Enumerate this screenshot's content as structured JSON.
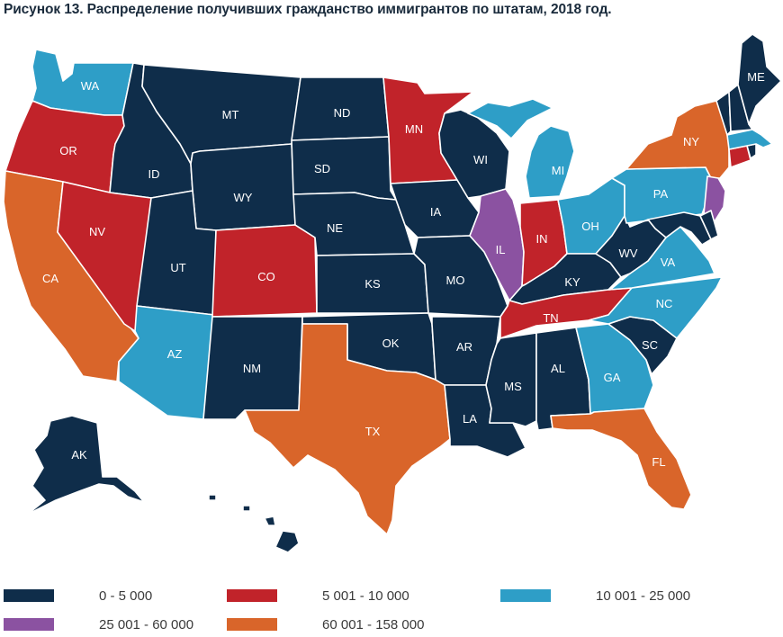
{
  "title": "Рисунок 13. Распределение получивших гражданство иммигрантов по штатам, 2018 год.",
  "colors": {
    "c1": "#0f2d4a",
    "c2": "#c1232a",
    "c3": "#2e9ec7",
    "c4": "#8b52a1",
    "c5": "#d9652a"
  },
  "legend": [
    {
      "color_key": "c1",
      "label": "0 - 5 000"
    },
    {
      "color_key": "c2",
      "label": "5 001 - 10 000"
    },
    {
      "color_key": "c3",
      "label": "10 001 - 25 000"
    },
    {
      "color_key": "c4",
      "label": "25 001 - 60 000"
    },
    {
      "color_key": "c5",
      "label": "60 001 - 158 000"
    }
  ],
  "states": {
    "WA": {
      "label": "WA",
      "category": "c3"
    },
    "OR": {
      "label": "OR",
      "category": "c2"
    },
    "CA": {
      "label": "CA",
      "category": "c5"
    },
    "ID": {
      "label": "ID",
      "category": "c1"
    },
    "NV": {
      "label": "NV",
      "category": "c2"
    },
    "MT": {
      "label": "MT",
      "category": "c1"
    },
    "WY": {
      "label": "WY",
      "category": "c1"
    },
    "UT": {
      "label": "UT",
      "category": "c1"
    },
    "AZ": {
      "label": "AZ",
      "category": "c3"
    },
    "CO": {
      "label": "CO",
      "category": "c2"
    },
    "NM": {
      "label": "NM",
      "category": "c1"
    },
    "ND": {
      "label": "ND",
      "category": "c1"
    },
    "SD": {
      "label": "SD",
      "category": "c1"
    },
    "NE": {
      "label": "NE",
      "category": "c1"
    },
    "KS": {
      "label": "KS",
      "category": "c1"
    },
    "OK": {
      "label": "OK",
      "category": "c1"
    },
    "TX": {
      "label": "TX",
      "category": "c5"
    },
    "MN": {
      "label": "MN",
      "category": "c2"
    },
    "IA": {
      "label": "IA",
      "category": "c1"
    },
    "MO": {
      "label": "MO",
      "category": "c1"
    },
    "AR": {
      "label": "AR",
      "category": "c1"
    },
    "LA": {
      "label": "LA",
      "category": "c1"
    },
    "WI": {
      "label": "WI",
      "category": "c1"
    },
    "IL": {
      "label": "IL",
      "category": "c4"
    },
    "MI": {
      "label": "MI",
      "category": "c3"
    },
    "IN": {
      "label": "IN",
      "category": "c2"
    },
    "OH": {
      "label": "OH",
      "category": "c3"
    },
    "KY": {
      "label": "KY",
      "category": "c1"
    },
    "TN": {
      "label": "TN",
      "category": "c2"
    },
    "MS": {
      "label": "MS",
      "category": "c1"
    },
    "AL": {
      "label": "AL",
      "category": "c1"
    },
    "GA": {
      "label": "GA",
      "category": "c3"
    },
    "FL": {
      "label": "FL",
      "category": "c5"
    },
    "SC": {
      "label": "SC",
      "category": "c1"
    },
    "NC": {
      "label": "NC",
      "category": "c3"
    },
    "VA": {
      "label": "VA",
      "category": "c3"
    },
    "WV": {
      "label": "WV",
      "category": "c1"
    },
    "PA": {
      "label": "PA",
      "category": "c3"
    },
    "NY": {
      "label": "NY",
      "category": "c5"
    },
    "NJ": {
      "label": "",
      "category": "c4"
    },
    "DE": {
      "label": "",
      "category": "c1"
    },
    "MD": {
      "label": "",
      "category": "c1"
    },
    "CT": {
      "label": "",
      "category": "c2"
    },
    "RI": {
      "label": "",
      "category": "c1"
    },
    "MA": {
      "label": "",
      "category": "c3"
    },
    "VT": {
      "label": "",
      "category": "c1"
    },
    "NH": {
      "label": "",
      "category": "c1"
    },
    "ME": {
      "label": "ME",
      "category": "c1"
    },
    "AK": {
      "label": "AK",
      "category": "c1"
    },
    "HI": {
      "label": "",
      "category": "c1"
    }
  }
}
